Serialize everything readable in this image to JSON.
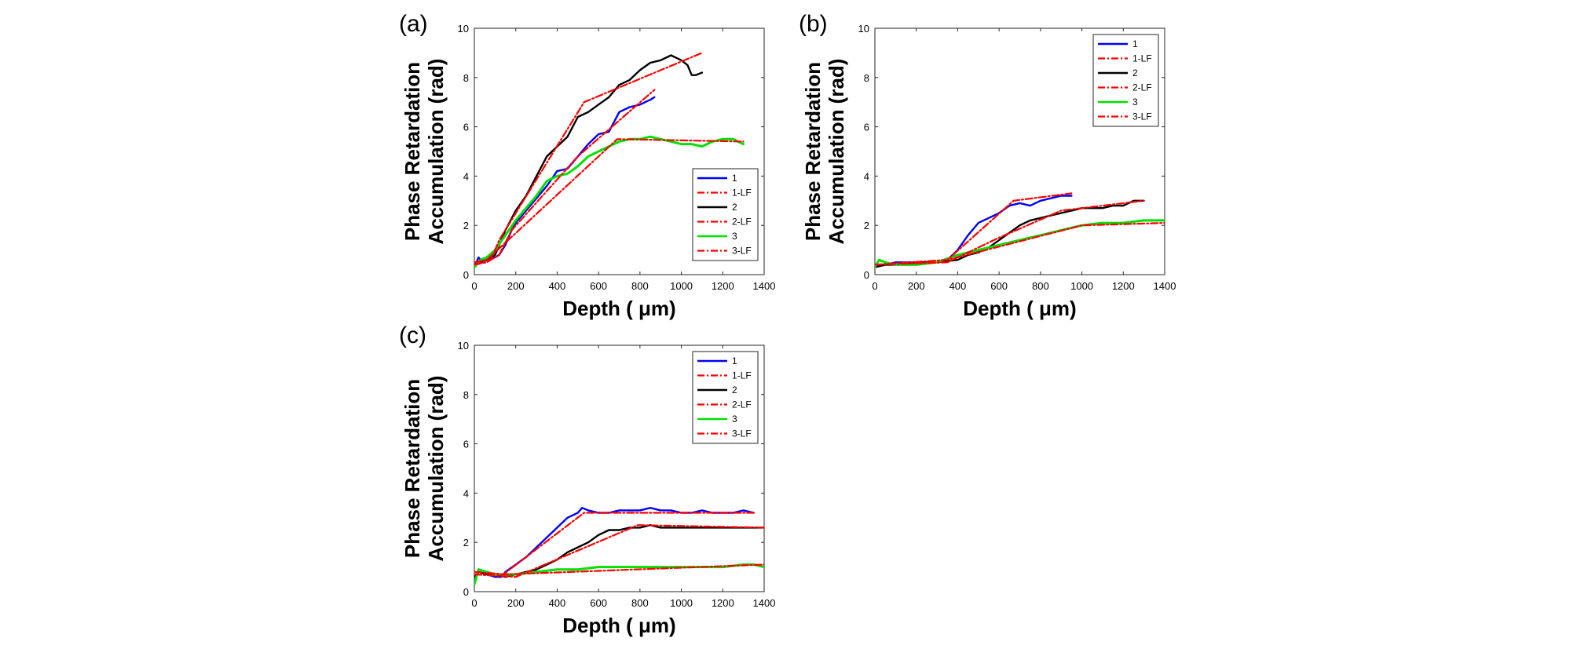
{
  "figure": {
    "description_axis": {
      "xlabel": "Depth ( μm)",
      "ylabel_line1": "Phase Retardation",
      "ylabel_line2": "Accumulation (rad)"
    }
  },
  "chart_data": [
    {
      "panel": "(a)",
      "type": "line",
      "xlabel": "Depth ( μm)",
      "ylabel": "Phase Retardation Accumulation (rad)",
      "xlim": [
        0,
        1400
      ],
      "ylim": [
        0,
        10
      ],
      "xticks": [
        0,
        200,
        400,
        600,
        800,
        1000,
        1200,
        1400
      ],
      "yticks": [
        0,
        2,
        4,
        6,
        8,
        10
      ],
      "legend_position": "bottom-right",
      "series": [
        {
          "name": "1",
          "color": "#0000ff",
          "style": "solid",
          "x": [
            0,
            20,
            40,
            60,
            80,
            100,
            120,
            150,
            180,
            200,
            250,
            300,
            350,
            400,
            450,
            500,
            550,
            600,
            650,
            700,
            750,
            800,
            850,
            870
          ],
          "y": [
            0.3,
            0.7,
            0.5,
            0.6,
            0.7,
            0.7,
            0.8,
            1.2,
            1.8,
            2.1,
            2.6,
            3.1,
            3.6,
            4.2,
            4.3,
            4.8,
            5.3,
            5.7,
            5.8,
            6.6,
            6.8,
            6.9,
            7.1,
            7.2
          ]
        },
        {
          "name": "1-LF",
          "color": "#ff0000",
          "style": "dashdot",
          "x": [
            0,
            60,
            120,
            180,
            500,
            870
          ],
          "y": [
            0.4,
            0.5,
            0.8,
            1.8,
            4.8,
            7.5
          ]
        },
        {
          "name": "2",
          "color": "#000000",
          "style": "solid",
          "x": [
            0,
            30,
            60,
            100,
            150,
            200,
            250,
            300,
            350,
            400,
            450,
            500,
            550,
            600,
            650,
            700,
            750,
            800,
            850,
            900,
            950,
            1000,
            1030,
            1050,
            1070,
            1100
          ],
          "y": [
            0.4,
            0.5,
            0.6,
            0.8,
            1.8,
            2.6,
            3.2,
            4.0,
            4.8,
            5.2,
            5.6,
            6.4,
            6.6,
            6.9,
            7.2,
            7.7,
            7.9,
            8.3,
            8.6,
            8.7,
            8.9,
            8.7,
            8.5,
            8.1,
            8.1,
            8.2
          ]
        },
        {
          "name": "2-LF",
          "color": "#ff0000",
          "style": "dashdot",
          "x": [
            0,
            80,
            120,
            530,
            1100
          ],
          "y": [
            0.4,
            0.6,
            1.4,
            7.0,
            9.0
          ]
        },
        {
          "name": "3",
          "color": "#00e000",
          "style": "solid",
          "x": [
            0,
            30,
            60,
            100,
            150,
            200,
            250,
            300,
            350,
            400,
            450,
            500,
            550,
            600,
            650,
            700,
            750,
            800,
            850,
            900,
            950,
            1000,
            1050,
            1100,
            1150,
            1200,
            1250,
            1300
          ],
          "y": [
            0.3,
            0.6,
            0.7,
            1.0,
            1.6,
            2.2,
            2.7,
            3.2,
            3.8,
            4.0,
            4.1,
            4.4,
            4.8,
            5.0,
            5.2,
            5.4,
            5.5,
            5.5,
            5.6,
            5.5,
            5.4,
            5.3,
            5.3,
            5.2,
            5.4,
            5.5,
            5.5,
            5.3
          ]
        },
        {
          "name": "3-LF",
          "color": "#ff0000",
          "style": "dashdot",
          "x": [
            0,
            60,
            690,
            1300
          ],
          "y": [
            0.5,
            0.6,
            5.5,
            5.4
          ]
        }
      ]
    },
    {
      "panel": "(b)",
      "type": "line",
      "xlabel": "Depth ( μm)",
      "ylabel": "Phase Retardation Accumulation (rad)",
      "xlim": [
        0,
        1400
      ],
      "ylim": [
        0,
        10
      ],
      "xticks": [
        0,
        200,
        400,
        600,
        800,
        1000,
        1200,
        1400
      ],
      "yticks": [
        0,
        2,
        4,
        6,
        8,
        10
      ],
      "legend_position": "top-right",
      "series": [
        {
          "name": "1",
          "color": "#0000ff",
          "style": "solid",
          "x": [
            0,
            50,
            100,
            200,
            300,
            350,
            400,
            450,
            500,
            550,
            600,
            650,
            700,
            750,
            800,
            850,
            900,
            950
          ],
          "y": [
            0.4,
            0.4,
            0.5,
            0.5,
            0.5,
            0.6,
            1.0,
            1.6,
            2.1,
            2.3,
            2.5,
            2.8,
            2.9,
            2.8,
            3.0,
            3.1,
            3.2,
            3.2
          ]
        },
        {
          "name": "1-LF",
          "color": "#ff0000",
          "style": "dashdot",
          "x": [
            0,
            350,
            670,
            950
          ],
          "y": [
            0.4,
            0.6,
            3.0,
            3.3
          ]
        },
        {
          "name": "2",
          "color": "#000000",
          "style": "solid",
          "x": [
            0,
            50,
            100,
            200,
            300,
            400,
            450,
            500,
            550,
            600,
            650,
            700,
            750,
            800,
            850,
            900,
            950,
            1000,
            1050,
            1100,
            1150,
            1200,
            1250,
            1300
          ],
          "y": [
            0.3,
            0.4,
            0.4,
            0.5,
            0.5,
            0.6,
            0.8,
            0.9,
            1.1,
            1.4,
            1.7,
            2.0,
            2.2,
            2.3,
            2.4,
            2.5,
            2.6,
            2.7,
            2.7,
            2.7,
            2.8,
            2.8,
            3.0,
            3.0
          ]
        },
        {
          "name": "2-LF",
          "color": "#ff0000",
          "style": "dashdot",
          "x": [
            0,
            350,
            600,
            900,
            1300
          ],
          "y": [
            0.4,
            0.5,
            1.5,
            2.6,
            3.0
          ]
        },
        {
          "name": "3",
          "color": "#00e000",
          "style": "solid",
          "x": [
            0,
            20,
            50,
            100,
            200,
            300,
            400,
            500,
            600,
            700,
            800,
            900,
            1000,
            1100,
            1200,
            1300,
            1400
          ],
          "y": [
            0.3,
            0.6,
            0.5,
            0.4,
            0.4,
            0.5,
            0.8,
            1.0,
            1.2,
            1.4,
            1.6,
            1.8,
            2.0,
            2.1,
            2.1,
            2.2,
            2.2
          ]
        },
        {
          "name": "3-LF",
          "color": "#ff0000",
          "style": "dashdot",
          "x": [
            0,
            350,
            1000,
            1400
          ],
          "y": [
            0.4,
            0.6,
            2.0,
            2.1
          ]
        }
      ]
    },
    {
      "panel": "(c)",
      "type": "line",
      "xlabel": "Depth ( μm)",
      "ylabel": "Phase Retardation Accumulation (rad)",
      "xlim": [
        0,
        1400
      ],
      "ylim": [
        0,
        10
      ],
      "xticks": [
        0,
        200,
        400,
        600,
        800,
        1000,
        1200,
        1400
      ],
      "yticks": [
        0,
        2,
        4,
        6,
        8,
        10
      ],
      "legend_position": "top-right",
      "series": [
        {
          "name": "1",
          "color": "#0000ff",
          "style": "solid",
          "x": [
            0,
            20,
            60,
            100,
            130,
            150,
            200,
            250,
            300,
            350,
            400,
            450,
            500,
            520,
            550,
            600,
            650,
            700,
            750,
            800,
            850,
            900,
            950,
            1000,
            1050,
            1100,
            1150,
            1200,
            1250,
            1300,
            1350
          ],
          "y": [
            0.4,
            0.8,
            0.7,
            0.6,
            0.6,
            0.8,
            1.1,
            1.4,
            1.8,
            2.2,
            2.6,
            3.0,
            3.2,
            3.4,
            3.3,
            3.2,
            3.2,
            3.3,
            3.3,
            3.3,
            3.4,
            3.3,
            3.3,
            3.2,
            3.2,
            3.3,
            3.2,
            3.2,
            3.2,
            3.3,
            3.2
          ]
        },
        {
          "name": "1-LF",
          "color": "#ff0000",
          "style": "dashdot",
          "x": [
            0,
            140,
            530,
            1350
          ],
          "y": [
            0.8,
            0.7,
            3.2,
            3.2
          ]
        },
        {
          "name": "2",
          "color": "#000000",
          "style": "solid",
          "x": [
            0,
            20,
            60,
            100,
            150,
            200,
            250,
            300,
            350,
            400,
            450,
            500,
            550,
            600,
            650,
            700,
            750,
            800,
            850,
            900,
            950,
            1000,
            1050,
            1100,
            1150,
            1200,
            1250,
            1300,
            1350,
            1400
          ],
          "y": [
            0.6,
            0.8,
            0.7,
            0.7,
            0.6,
            0.7,
            0.8,
            0.9,
            1.1,
            1.3,
            1.6,
            1.8,
            2.0,
            2.3,
            2.5,
            2.5,
            2.6,
            2.6,
            2.7,
            2.6,
            2.6,
            2.6,
            2.6,
            2.6,
            2.6,
            2.6,
            2.6,
            2.6,
            2.6,
            2.6
          ]
        },
        {
          "name": "2-LF",
          "color": "#ff0000",
          "style": "dashdot",
          "x": [
            0,
            200,
            790,
            1400
          ],
          "y": [
            0.7,
            0.6,
            2.7,
            2.6
          ]
        },
        {
          "name": "3",
          "color": "#00e000",
          "style": "solid",
          "x": [
            0,
            20,
            60,
            100,
            150,
            200,
            300,
            400,
            500,
            600,
            700,
            800,
            900,
            1000,
            1100,
            1200,
            1300,
            1350,
            1400
          ],
          "y": [
            0.3,
            0.9,
            0.8,
            0.7,
            0.7,
            0.7,
            0.8,
            0.9,
            0.9,
            1.0,
            1.0,
            1.0,
            1.0,
            1.0,
            1.0,
            1.0,
            1.1,
            1.1,
            1.0
          ]
        },
        {
          "name": "3-LF",
          "color": "#ff0000",
          "style": "dashdot",
          "x": [
            0,
            150,
            1400
          ],
          "y": [
            0.8,
            0.7,
            1.1
          ]
        }
      ]
    }
  ]
}
